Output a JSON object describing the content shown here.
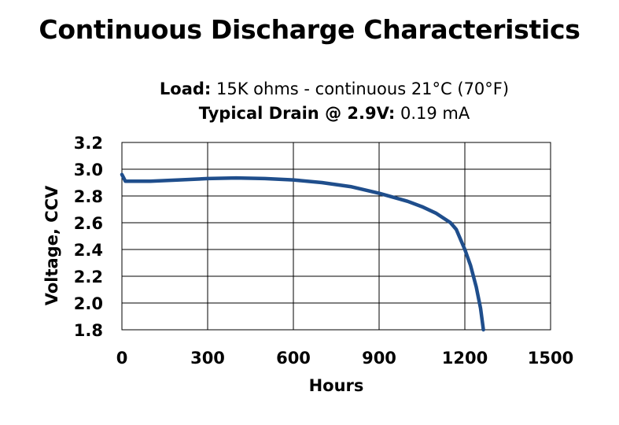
{
  "chart_data": {
    "type": "line",
    "title": "Continuous Discharge Characteristics",
    "subtitle_lines": [
      {
        "label": "Load:",
        "text": " 15K ohms - continuous  21°C (70°F)"
      },
      {
        "label": "Typical Drain @ 2.9V:",
        "text": " 0.19 mA"
      }
    ],
    "xlabel": "Hours",
    "ylabel": "Voltage, CCV",
    "xlim": [
      0,
      1500
    ],
    "ylim": [
      1.8,
      3.2
    ],
    "x_ticks": [
      "0",
      "300",
      "600",
      "900",
      "1200",
      "1500"
    ],
    "y_ticks": [
      "3.2",
      "3.0",
      "2.8",
      "2.6",
      "2.4",
      "2.2",
      "2.0",
      "1.8"
    ],
    "grid": true,
    "line_color": "#1f4e8c",
    "series": [
      {
        "x": [
          0,
          5,
          12,
          30,
          100,
          200,
          300,
          400,
          500,
          600,
          700,
          800,
          900,
          950,
          1000,
          1050,
          1100,
          1150,
          1170,
          1200,
          1220,
          1240,
          1255,
          1265
        ],
        "y": [
          2.96,
          2.94,
          2.91,
          2.91,
          2.91,
          2.92,
          2.93,
          2.935,
          2.93,
          2.92,
          2.9,
          2.87,
          2.82,
          2.79,
          2.76,
          2.72,
          2.67,
          2.6,
          2.55,
          2.4,
          2.28,
          2.12,
          1.96,
          1.8
        ]
      }
    ]
  }
}
